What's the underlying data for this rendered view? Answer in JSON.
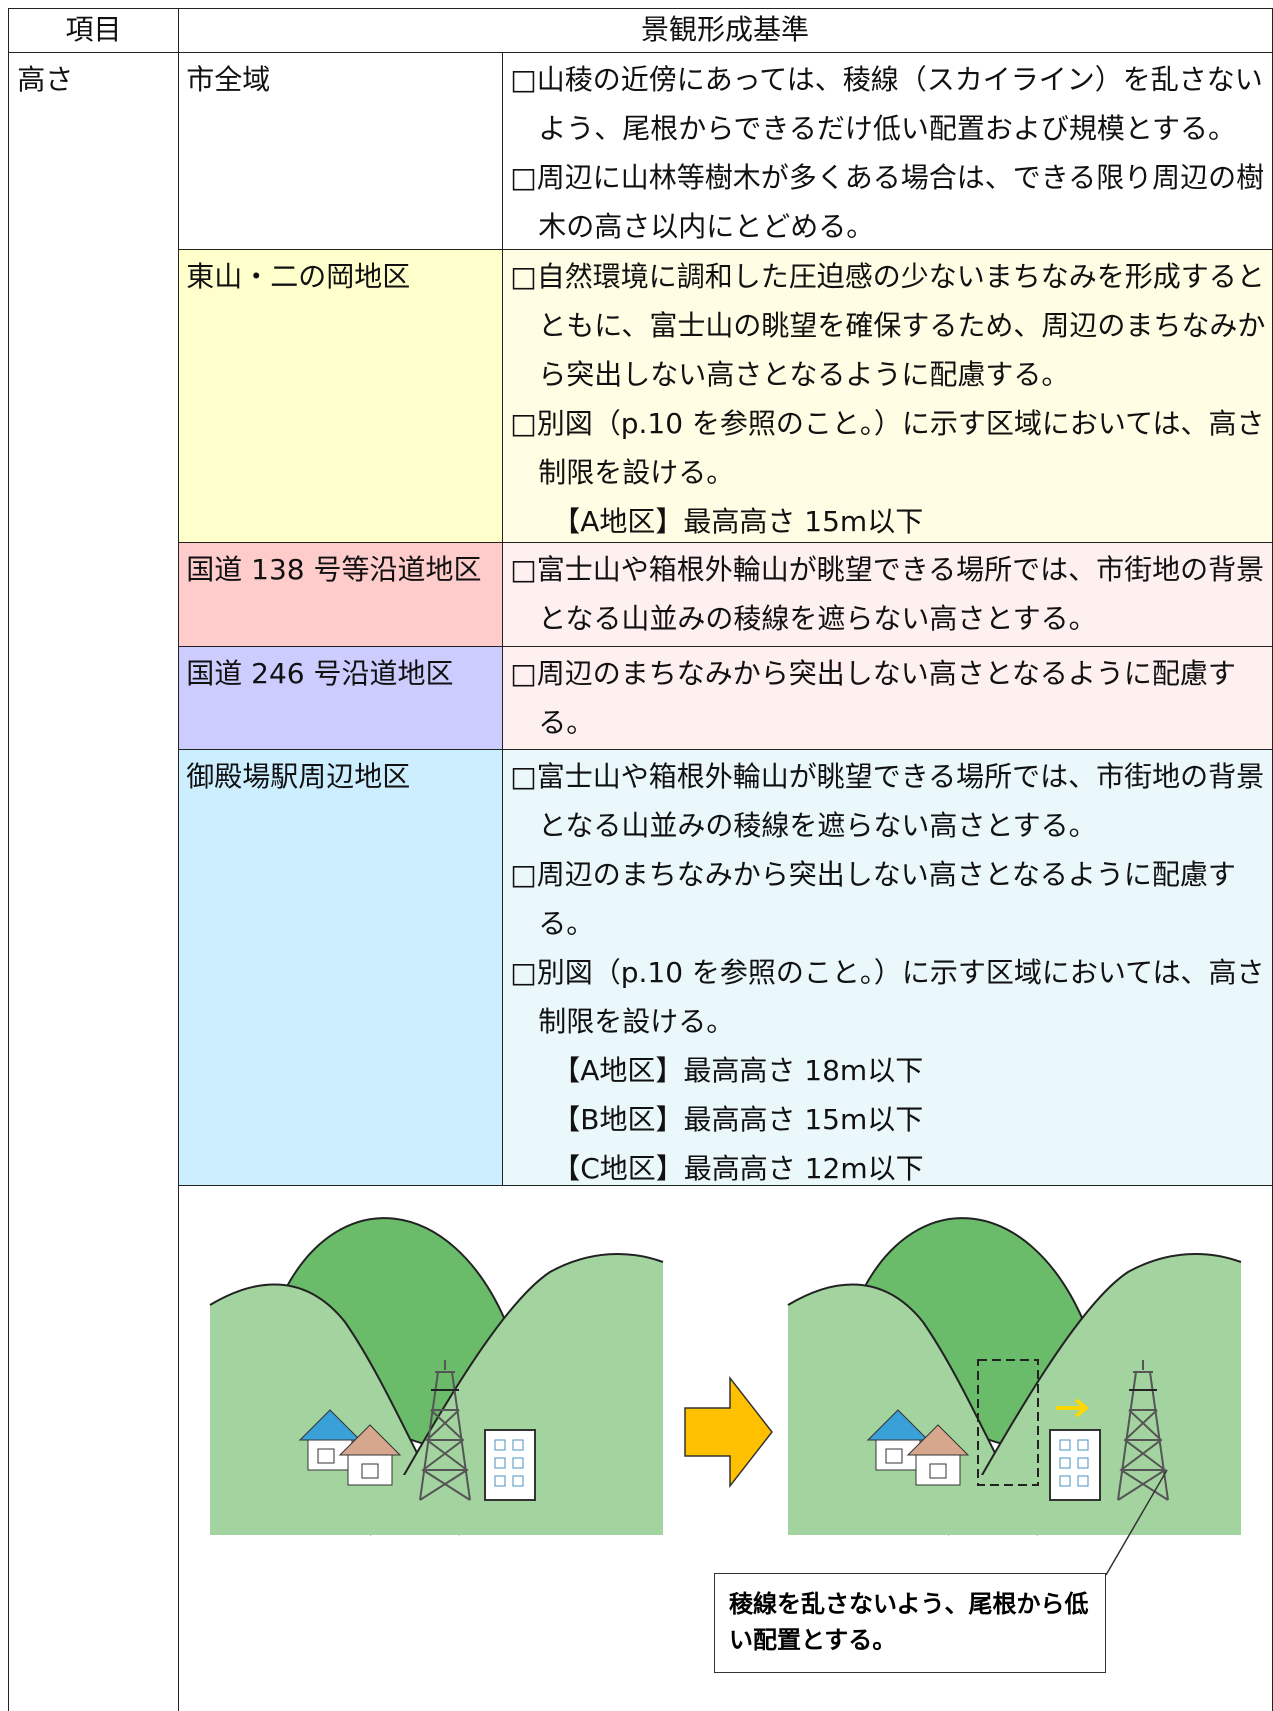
{
  "header": {
    "item": "項目",
    "criteria": "景観形成基準"
  },
  "item": "高さ",
  "rows": [
    {
      "area": "市全域",
      "lines": [
        {
          "text": "□山稜の近傍にあっては、稜線（スカイライン）を乱さないよう、尾根からできるだけ低い配置および規模とする。"
        },
        {
          "text": "□周辺に山林等樹木が多くある場合は、できる限り周辺の樹木の高さ以内にとどめる。"
        }
      ]
    },
    {
      "area": "東山・二の岡地区",
      "lines": [
        {
          "text": "□自然環境に調和した圧迫感の少ないまちなみを形成するとともに、富士山の眺望を確保するため、周辺のまちなみから突出しない高さとなるように配慮する。"
        },
        {
          "text": "□別図（p.10 を参照のこと。）に示す区域においては、高さ制限を設ける。"
        },
        {
          "text": "【A地区】最高高さ 15m以下",
          "sub": true
        }
      ]
    },
    {
      "area": "国道 138 号等沿道地区",
      "lines": [
        {
          "text": "□富士山や箱根外輪山が眺望できる場所では、市街地の背景となる山並みの稜線を遮らない高さとする。"
        }
      ]
    },
    {
      "area": "国道 246 号沿道地区",
      "lines": [
        {
          "text": "□周辺のまちなみから突出しない高さとなるように配慮する。"
        }
      ]
    },
    {
      "area": "御殿場駅周辺地区",
      "lines": [
        {
          "text": "□富士山や箱根外輪山が眺望できる場所では、市街地の背景となる山並みの稜線を遮らない高さとする。"
        },
        {
          "text": "□周辺のまちなみから突出しない高さとなるように配慮する。"
        },
        {
          "text": "□別図（p.10 を参照のこと。）に示す区域においては、高さ制限を設ける。"
        },
        {
          "text": "【A地区】最高高さ 18m以下",
          "sub": true
        },
        {
          "text": "【B地区】最高高さ 15m以下",
          "sub": true
        },
        {
          "text": "【C地区】最高高さ 12m以下",
          "sub": true
        }
      ]
    }
  ],
  "illustration": {
    "caption": "稜線を乱さないよう、尾根から低い配置とする。"
  }
}
